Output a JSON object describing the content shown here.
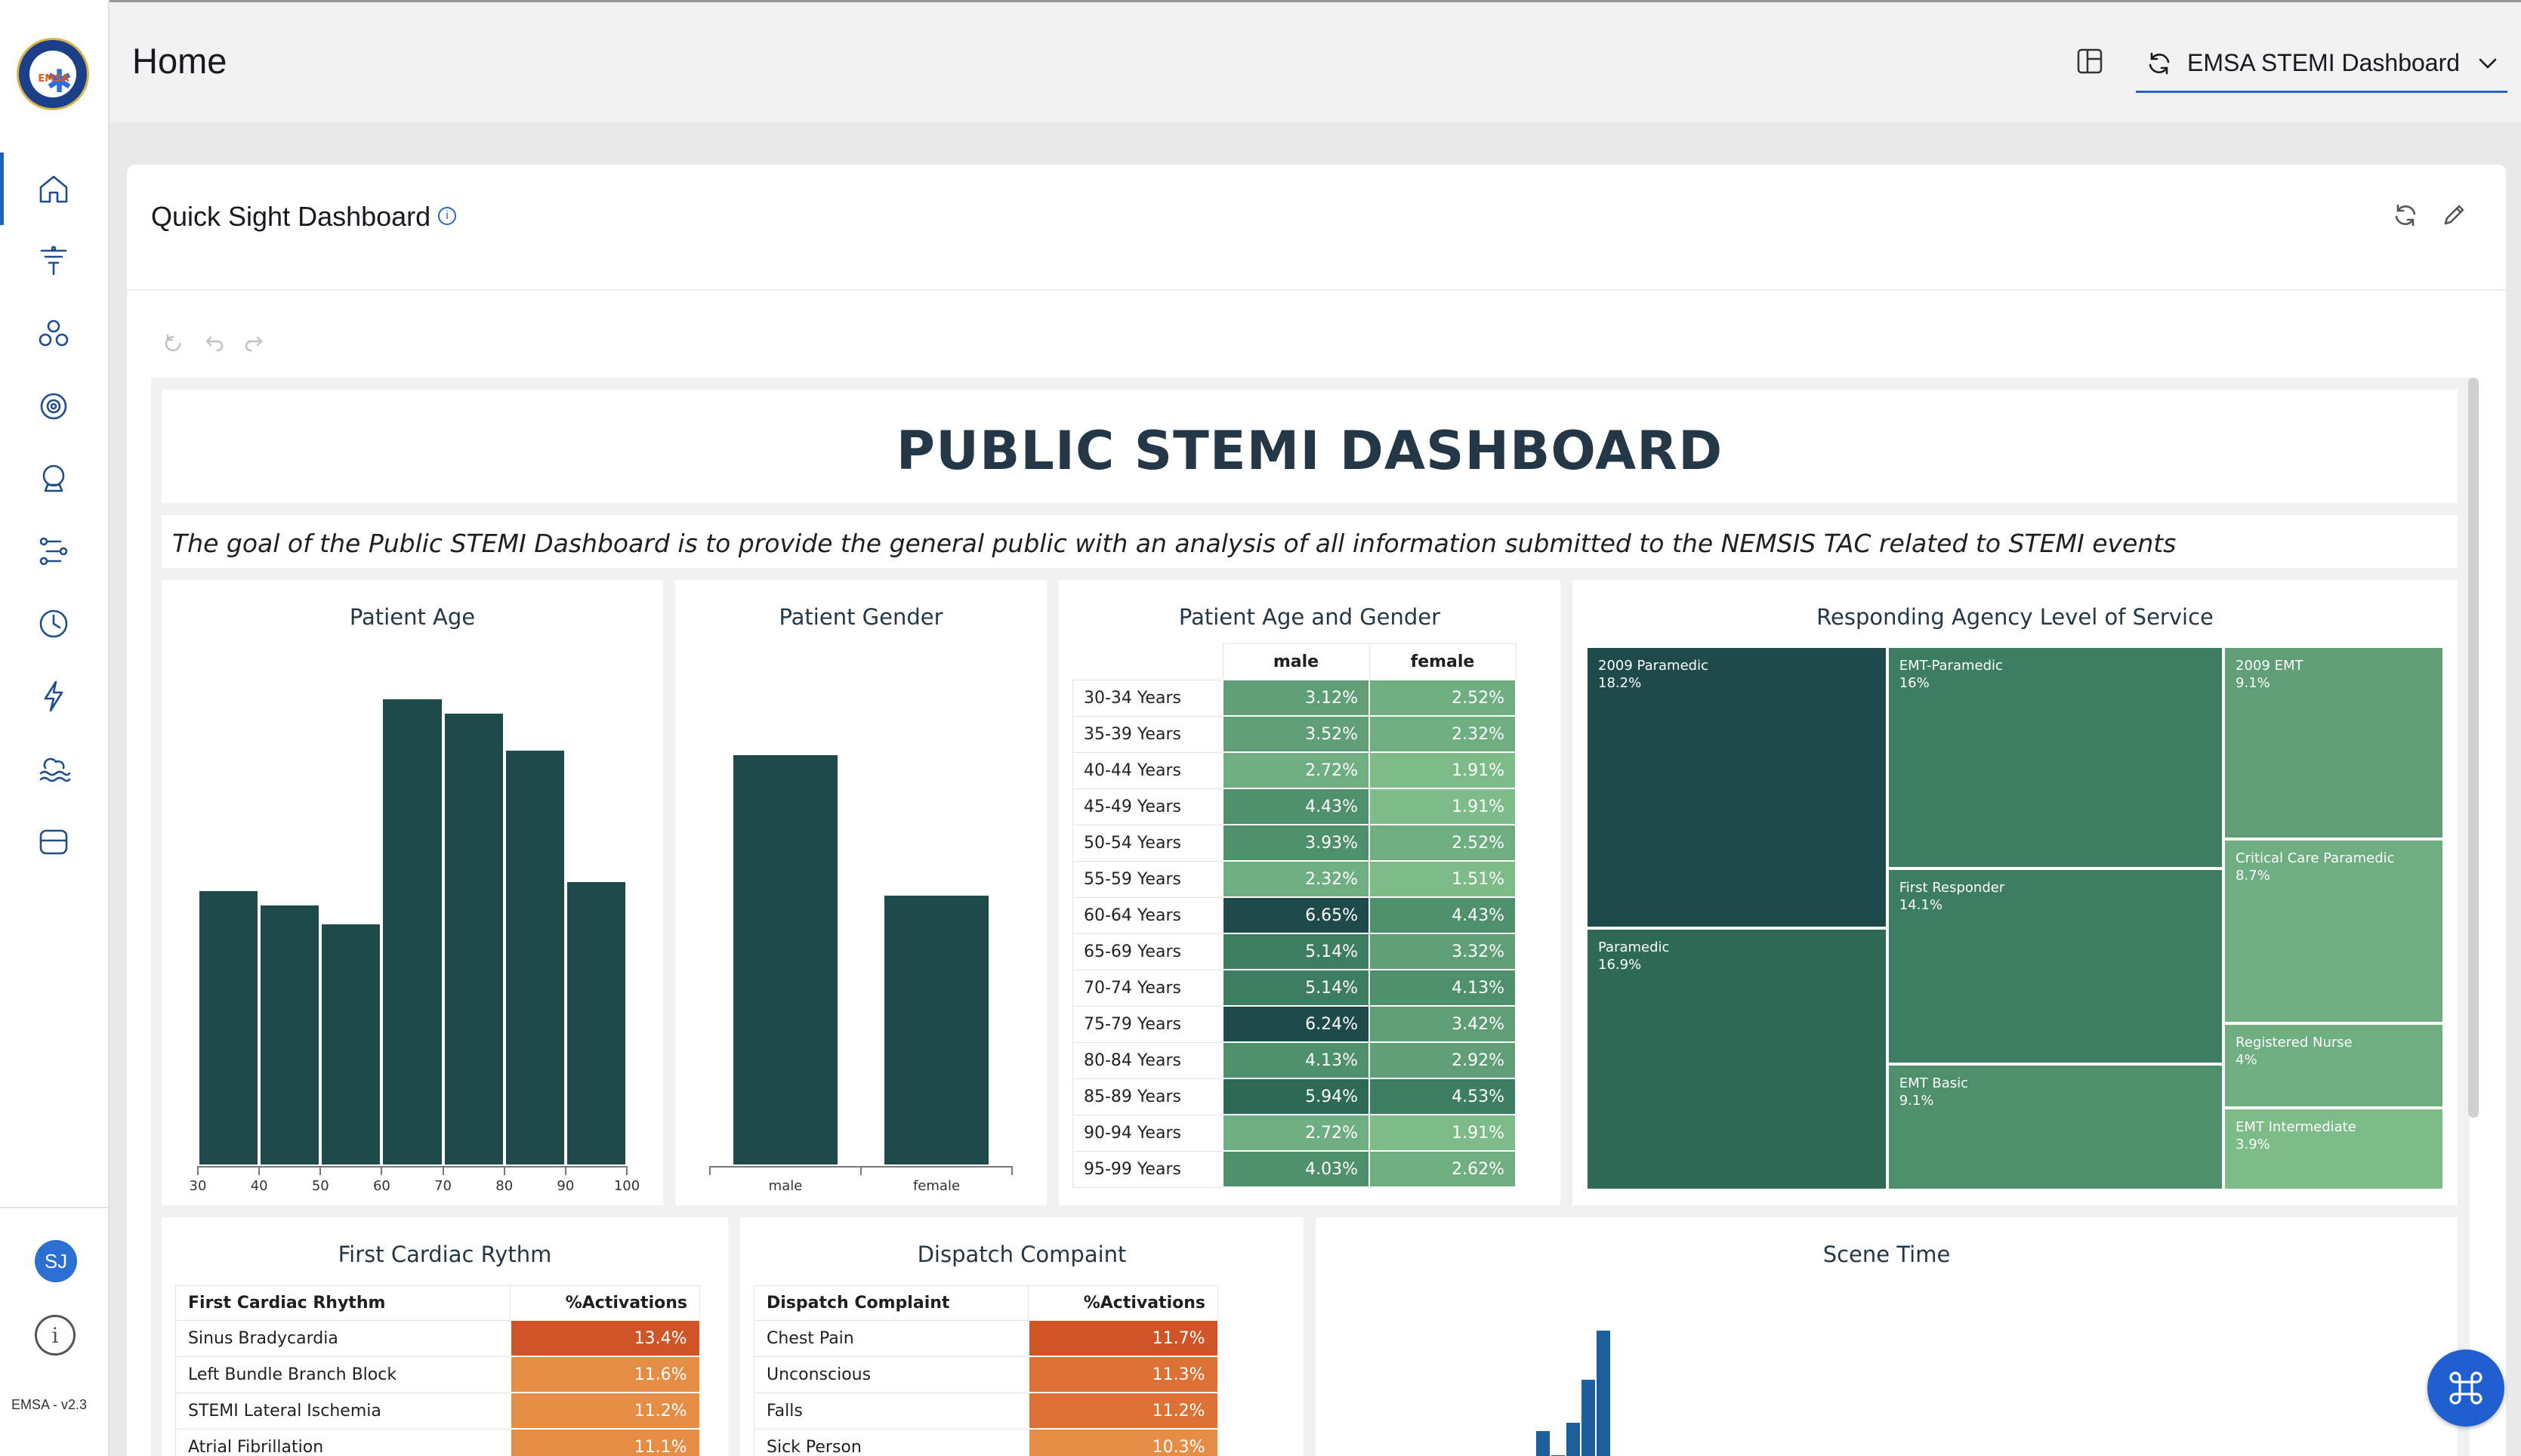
{
  "sidebar": {
    "logo_text": "EMSA",
    "nav_icons": [
      "home-icon",
      "funnel-icon",
      "circles-icon",
      "settings-icon",
      "crystal-ball-icon",
      "routes-icon",
      "clock-icon",
      "lightning-icon",
      "cloud-waves-icon",
      "database-icon"
    ],
    "user_initials": "SJ",
    "info_label": "i",
    "version": "EMSA - v2.3"
  },
  "header": {
    "title": "Home",
    "dashboard_select": "EMSA STEMI Dashboard"
  },
  "card": {
    "title": "Quick Sight Dashboard",
    "info_label": "i"
  },
  "dashboard": {
    "title": "PUBLIC STEMI DASHBOARD",
    "subtitle": "The goal of the Public STEMI Dashboard is to provide the general public with an analysis of all information submitted to the NEMSIS TAC related to STEMI events"
  },
  "colors": {
    "dark_teal": "#1f4a4a",
    "green_scale": [
      "#1f4a4a",
      "#2d6a55",
      "#3d7d62",
      "#4e8f6c",
      "#5f9e77",
      "#6fae80",
      "#7dbb89"
    ],
    "orange_scale": [
      "#cf5526",
      "#dd7034",
      "#e58c45"
    ],
    "scene_blue": "#1d5e9c"
  },
  "chart_data": [
    {
      "type": "bar",
      "title": "Patient Age",
      "x_ticks": [
        "30",
        "40",
        "50",
        "60",
        "70",
        "80",
        "90",
        "100"
      ],
      "bins": [
        [
          30,
          40
        ],
        [
          40,
          50
        ],
        [
          50,
          60
        ],
        [
          60,
          70
        ],
        [
          70,
          80
        ],
        [
          80,
          90
        ],
        [
          90,
          100
        ]
      ],
      "values": [
        0.59,
        0.56,
        0.52,
        1.0,
        0.97,
        0.89,
        0.61
      ],
      "value_scale": "relative to tallest bin (no y axis shown)"
    },
    {
      "type": "bar",
      "title": "Patient Gender",
      "categories": [
        "male",
        "female"
      ],
      "values": [
        1.0,
        0.66
      ],
      "value_scale": "relative to tallest bar (no y axis shown)"
    },
    {
      "type": "table",
      "title": "Patient Age and Gender",
      "columns": [
        "male",
        "female"
      ],
      "rows": [
        {
          "label": "30-34 Years",
          "male": "3.12%",
          "female": "2.52%"
        },
        {
          "label": "35-39 Years",
          "male": "3.52%",
          "female": "2.32%"
        },
        {
          "label": "40-44 Years",
          "male": "2.72%",
          "female": "1.91%"
        },
        {
          "label": "45-49 Years",
          "male": "4.43%",
          "female": "1.91%"
        },
        {
          "label": "50-54 Years",
          "male": "3.93%",
          "female": "2.52%"
        },
        {
          "label": "55-59 Years",
          "male": "2.32%",
          "female": "1.51%"
        },
        {
          "label": "60-64 Years",
          "male": "6.65%",
          "female": "4.43%"
        },
        {
          "label": "65-69 Years",
          "male": "5.14%",
          "female": "3.32%"
        },
        {
          "label": "70-74 Years",
          "male": "5.14%",
          "female": "4.13%"
        },
        {
          "label": "75-79 Years",
          "male": "6.24%",
          "female": "3.42%"
        },
        {
          "label": "80-84 Years",
          "male": "4.13%",
          "female": "2.92%"
        },
        {
          "label": "85-89 Years",
          "male": "5.94%",
          "female": "4.53%"
        },
        {
          "label": "90-94 Years",
          "male": "2.72%",
          "female": "1.91%"
        },
        {
          "label": "95-99 Years",
          "male": "4.03%",
          "female": "2.62%"
        }
      ]
    },
    {
      "type": "treemap",
      "title": "Responding Agency Level of Service",
      "items": [
        {
          "label": "2009 Paramedic",
          "value": "18.2%"
        },
        {
          "label": "Paramedic",
          "value": "16.9%"
        },
        {
          "label": "EMT-Paramedic",
          "value": "16%"
        },
        {
          "label": "First Responder",
          "value": "14.1%"
        },
        {
          "label": "EMT Basic",
          "value": "9.1%"
        },
        {
          "label": "2009 EMT",
          "value": "9.1%"
        },
        {
          "label": "Critical Care Paramedic",
          "value": "8.7%"
        },
        {
          "label": "Registered Nurse",
          "value": "4%"
        },
        {
          "label": "EMT Intermediate",
          "value": "3.9%"
        }
      ]
    },
    {
      "type": "table",
      "title": "First Cardiac Rythm",
      "columns": [
        "First Cardiac Rhythm",
        "%Activations"
      ],
      "rows": [
        {
          "label": "Sinus Bradycardia",
          "value": "13.4%"
        },
        {
          "label": "Left Bundle Branch Block",
          "value": "11.6%"
        },
        {
          "label": "STEMI Lateral Ischemia",
          "value": "11.2%"
        },
        {
          "label": "Atrial Fibrillation",
          "value": "11.1%"
        }
      ]
    },
    {
      "type": "table",
      "title": "Dispatch Compaint",
      "columns": [
        "Dispatch Complaint",
        "%Activations"
      ],
      "rows": [
        {
          "label": "Chest Pain",
          "value": "11.7%"
        },
        {
          "label": "Unconscious",
          "value": "11.3%"
        },
        {
          "label": "Falls",
          "value": "11.2%"
        },
        {
          "label": "Sick Person",
          "value": "10.3%"
        }
      ]
    },
    {
      "type": "bar",
      "title": "Scene Time",
      "values": [
        0.3,
        0.13,
        0.36,
        0.66,
        1.0
      ],
      "value_scale": "relative to tallest visible bar (chart cropped)"
    }
  ]
}
